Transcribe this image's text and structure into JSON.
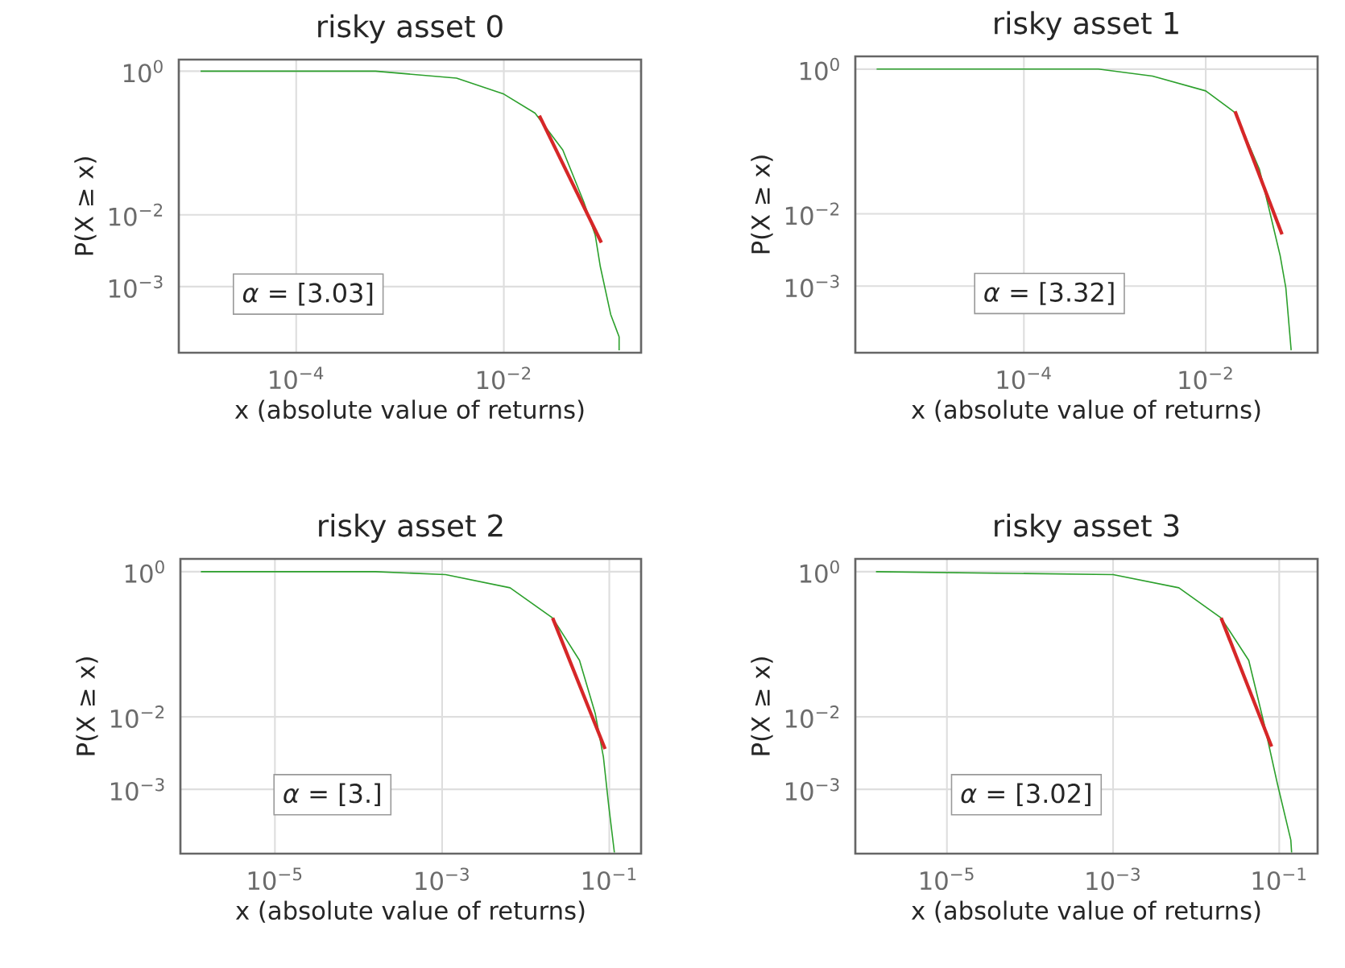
{
  "chart_data": [
    {
      "type": "line",
      "title": "risky asset 0",
      "xlabel": "x (absolute value of returns)",
      "ylabel": "P(X ≥ x)",
      "log": "xy",
      "grid": true,
      "xlim": [
        7.4e-06,
        0.21
      ],
      "ylim": [
        0.00012,
        1.45
      ],
      "xticks": [
        {
          "value": 0.0001,
          "label": "10$^{−4}$"
        },
        {
          "value": 0.01,
          "label": "10$^{−2}$"
        }
      ],
      "yticks": [
        {
          "value": 0.001,
          "label": "10$^{−3}$"
        },
        {
          "value": 0.01,
          "label": "10$^{−2}$"
        },
        {
          "value": 1,
          "label": "10$^{0}$"
        }
      ],
      "series": [
        {
          "color": "#2ca02c",
          "x": [
            1.2e-05,
            0.00058,
            0.0035,
            0.01,
            0.02,
            0.037,
            0.059,
            0.076,
            0.085,
            0.107,
            0.129,
            0.129
          ],
          "values": [
            1,
            1,
            0.8,
            0.48,
            0.26,
            0.08,
            0.015,
            0.0052,
            0.0019,
            0.00041,
            0.0002,
            0.00013
          ]
        },
        {
          "color": "#d62728",
          "x": [
            0.022,
            0.087
          ],
          "values": [
            0.24,
            0.0041
          ]
        }
      ],
      "annotations": [
        "*α* = [3.03]"
      ]
    },
    {
      "type": "line",
      "title": "risky asset 1",
      "xlabel": "x (absolute value of returns)",
      "ylabel": "P(X ≥ x)",
      "log": "xy",
      "grid": true,
      "xlim": [
        1.4e-06,
        0.17
      ],
      "ylim": [
        0.00012,
        1.5
      ],
      "xticks": [
        {
          "value": 0.0001,
          "label": "10$^{−4}$"
        },
        {
          "value": 0.01,
          "label": "10$^{−2}$"
        }
      ],
      "yticks": [
        {
          "value": 0.001,
          "label": "10$^{−3}$"
        },
        {
          "value": 0.01,
          "label": "10$^{−2}$"
        },
        {
          "value": 1,
          "label": "10$^{0}$"
        }
      ],
      "series": [
        {
          "color": "#2ca02c",
          "x": [
            2.4e-06,
            0.00066,
            0.0026,
            0.01,
            0.021,
            0.039,
            0.051,
            0.066,
            0.076,
            0.087
          ],
          "values": [
            1,
            1,
            0.8,
            0.5,
            0.25,
            0.041,
            0.0102,
            0.0026,
            0.00095,
            0.00013
          ]
        },
        {
          "color": "#d62728",
          "x": [
            0.021,
            0.069
          ],
          "values": [
            0.26,
            0.0052
          ]
        }
      ],
      "annotations": [
        "*α* = [3.32]"
      ]
    },
    {
      "type": "line",
      "title": "risky asset 2",
      "xlabel": "x (absolute value of returns)",
      "ylabel": "P(X ≥ x)",
      "log": "xy",
      "grid": true,
      "xlim": [
        7.4e-07,
        0.24
      ],
      "ylim": [
        0.00013,
        1.5
      ],
      "xticks": [
        {
          "value": 1e-05,
          "label": "10$^{−5}$"
        },
        {
          "value": 0.001,
          "label": "10$^{−3}$"
        },
        {
          "value": 0.1,
          "label": "10$^{−1}$"
        }
      ],
      "yticks": [
        {
          "value": 0.001,
          "label": "10$^{−3}$"
        },
        {
          "value": 0.01,
          "label": "10$^{−2}$"
        },
        {
          "value": 1,
          "label": "10$^{0}$"
        }
      ],
      "series": [
        {
          "color": "#2ca02c",
          "x": [
            1.3e-06,
            0.00016,
            0.0011,
            0.0065,
            0.021,
            0.044,
            0.068,
            0.085,
            0.098,
            0.115
          ],
          "values": [
            1,
            1,
            0.91,
            0.6,
            0.23,
            0.06,
            0.011,
            0.0028,
            0.00062,
            0.000135
          ]
        },
        {
          "color": "#d62728",
          "x": [
            0.021,
            0.089
          ],
          "values": [
            0.23,
            0.0036
          ]
        }
      ],
      "annotations": [
        "*α* = [3.]"
      ]
    },
    {
      "type": "line",
      "title": "risky asset 3",
      "xlabel": "x (absolute value of returns)",
      "ylabel": "P(X ≥ x)",
      "log": "xy",
      "grid": true,
      "xlim": [
        7.9e-07,
        0.29
      ],
      "ylim": [
        0.00013,
        1.5
      ],
      "xticks": [
        {
          "value": 1e-05,
          "label": "10$^{−5}$"
        },
        {
          "value": 0.001,
          "label": "10$^{−3}$"
        },
        {
          "value": 0.1,
          "label": "10$^{−1}$"
        }
      ],
      "yticks": [
        {
          "value": 0.001,
          "label": "10$^{−3}$"
        },
        {
          "value": 0.01,
          "label": "10$^{−2}$"
        },
        {
          "value": 1,
          "label": "10$^{0}$"
        }
      ],
      "series": [
        {
          "color": "#2ca02c",
          "x": [
            1.4e-06,
            0.001,
            0.0062,
            0.02,
            0.043,
            0.066,
            0.095,
            0.138,
            0.141
          ],
          "values": [
            1,
            0.91,
            0.6,
            0.23,
            0.06,
            0.0079,
            0.0012,
            0.0002,
            0.000135
          ]
        },
        {
          "color": "#d62728",
          "x": [
            0.02,
            0.081
          ],
          "values": [
            0.23,
            0.0039
          ]
        }
      ],
      "annotations": [
        "*α* = [3.02]"
      ]
    }
  ]
}
